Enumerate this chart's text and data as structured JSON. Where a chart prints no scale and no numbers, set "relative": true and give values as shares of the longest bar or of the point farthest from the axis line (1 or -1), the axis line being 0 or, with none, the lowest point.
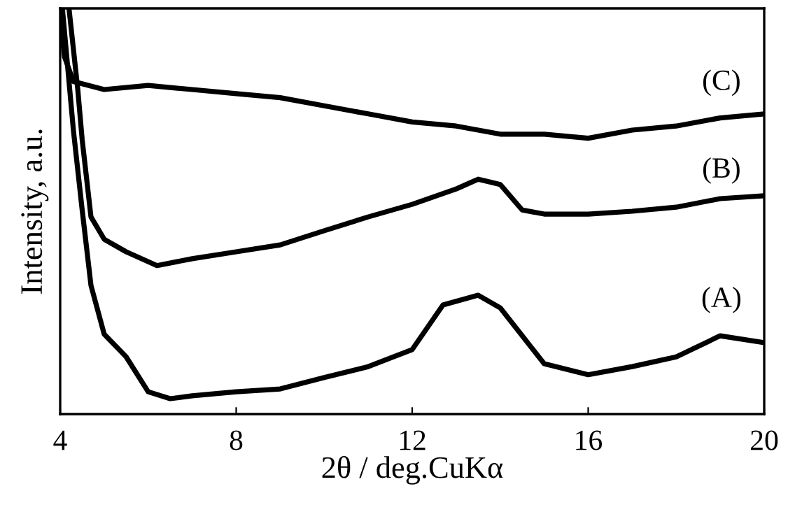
{
  "chart_data": {
    "type": "line",
    "xlabel": "2θ / deg.CuKα",
    "ylabel": "Intensity, a.u.",
    "relative": true,
    "xlim": [
      4,
      20
    ],
    "xticks": [
      4,
      8,
      12,
      16,
      20
    ],
    "grid": false,
    "legend": false,
    "marker": "none",
    "line_style": "solid",
    "series": [
      {
        "name": "(A)",
        "color": "#000000",
        "x": [
          4.05,
          4.3,
          4.5,
          4.7,
          5,
          5.5,
          6,
          6.5,
          7,
          8,
          9,
          10,
          11,
          12,
          12.7,
          13.5,
          14,
          14.5,
          15,
          16,
          17,
          18,
          19,
          20
        ],
        "values": [
          1.0,
          0.7,
          0.503,
          0.317,
          0.197,
          0.141,
          0.055,
          0.038,
          0.045,
          0.055,
          0.062,
          0.09,
          0.117,
          0.159,
          0.269,
          0.293,
          0.262,
          0.193,
          0.124,
          0.097,
          0.117,
          0.141,
          0.193,
          0.176
        ]
      },
      {
        "name": "(B)",
        "color": "#000000",
        "x": [
          4.2,
          4.4,
          4.5,
          4.7,
          5,
          5.5,
          6.2,
          7,
          8,
          9,
          10,
          11,
          12,
          13,
          13.5,
          14,
          14.5,
          15,
          16,
          17,
          18,
          19,
          20
        ],
        "values": [
          1.0,
          0.8,
          0.676,
          0.486,
          0.431,
          0.4,
          0.366,
          0.383,
          0.4,
          0.417,
          0.452,
          0.486,
          0.517,
          0.555,
          0.579,
          0.566,
          0.503,
          0.493,
          0.493,
          0.5,
          0.51,
          0.531,
          0.538
        ]
      },
      {
        "name": "(C)",
        "color": "#000000",
        "x": [
          4.0,
          4.1,
          4.3,
          5,
          6,
          7,
          8,
          9,
          10,
          11,
          12,
          13,
          14,
          15,
          16,
          17,
          18,
          19,
          20
        ],
        "values": [
          0.98,
          0.88,
          0.82,
          0.8,
          0.81,
          0.8,
          0.79,
          0.78,
          0.76,
          0.74,
          0.72,
          0.71,
          0.69,
          0.69,
          0.68,
          0.7,
          0.71,
          0.73,
          0.74
        ]
      }
    ]
  }
}
